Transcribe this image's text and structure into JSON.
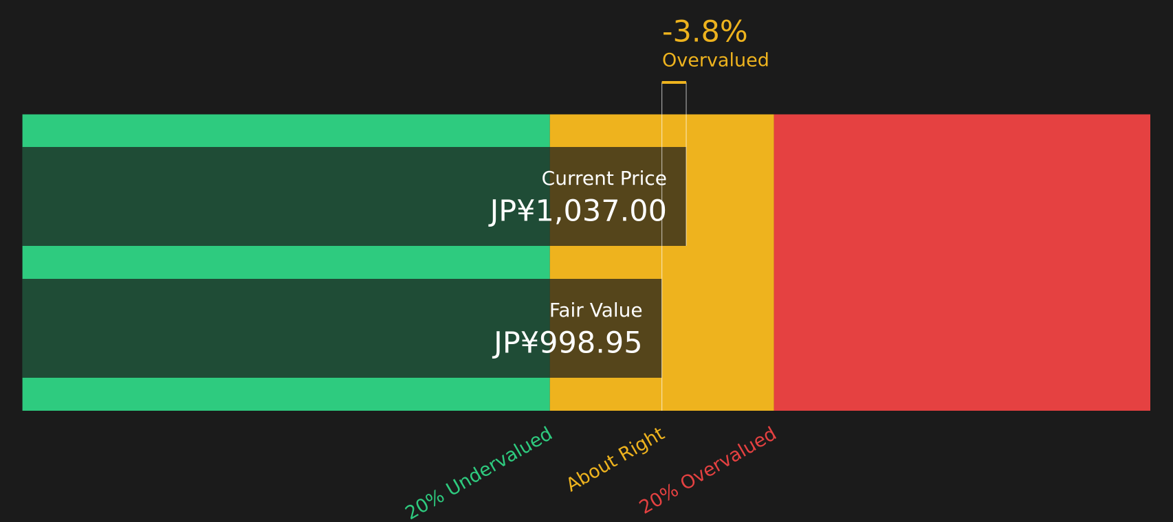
{
  "chart_data": {
    "type": "valuation",
    "xlim": [
      0,
      1762
    ],
    "zones": [
      {
        "name": "20% Undervalued",
        "color": "#2ecb7f",
        "range": [
          0,
          824
        ]
      },
      {
        "name": "About Right",
        "color": "#eeb31e",
        "range": [
          824,
          1174
        ]
      },
      {
        "name": "20% Overvalued",
        "color": "#e54141",
        "range": [
          1174,
          1762
        ]
      }
    ],
    "series": [
      {
        "name": "Current Price",
        "value": 1037,
        "value_label": "JP¥1,037.00"
      },
      {
        "name": "Fair Value",
        "value": 998.95,
        "value_label": "JP¥998.95"
      }
    ],
    "difference": {
      "value": -3.8,
      "label": "-3.8%",
      "status": "Overvalued",
      "color": "#eeb31e"
    },
    "bar_color": "#1b1b1b"
  }
}
